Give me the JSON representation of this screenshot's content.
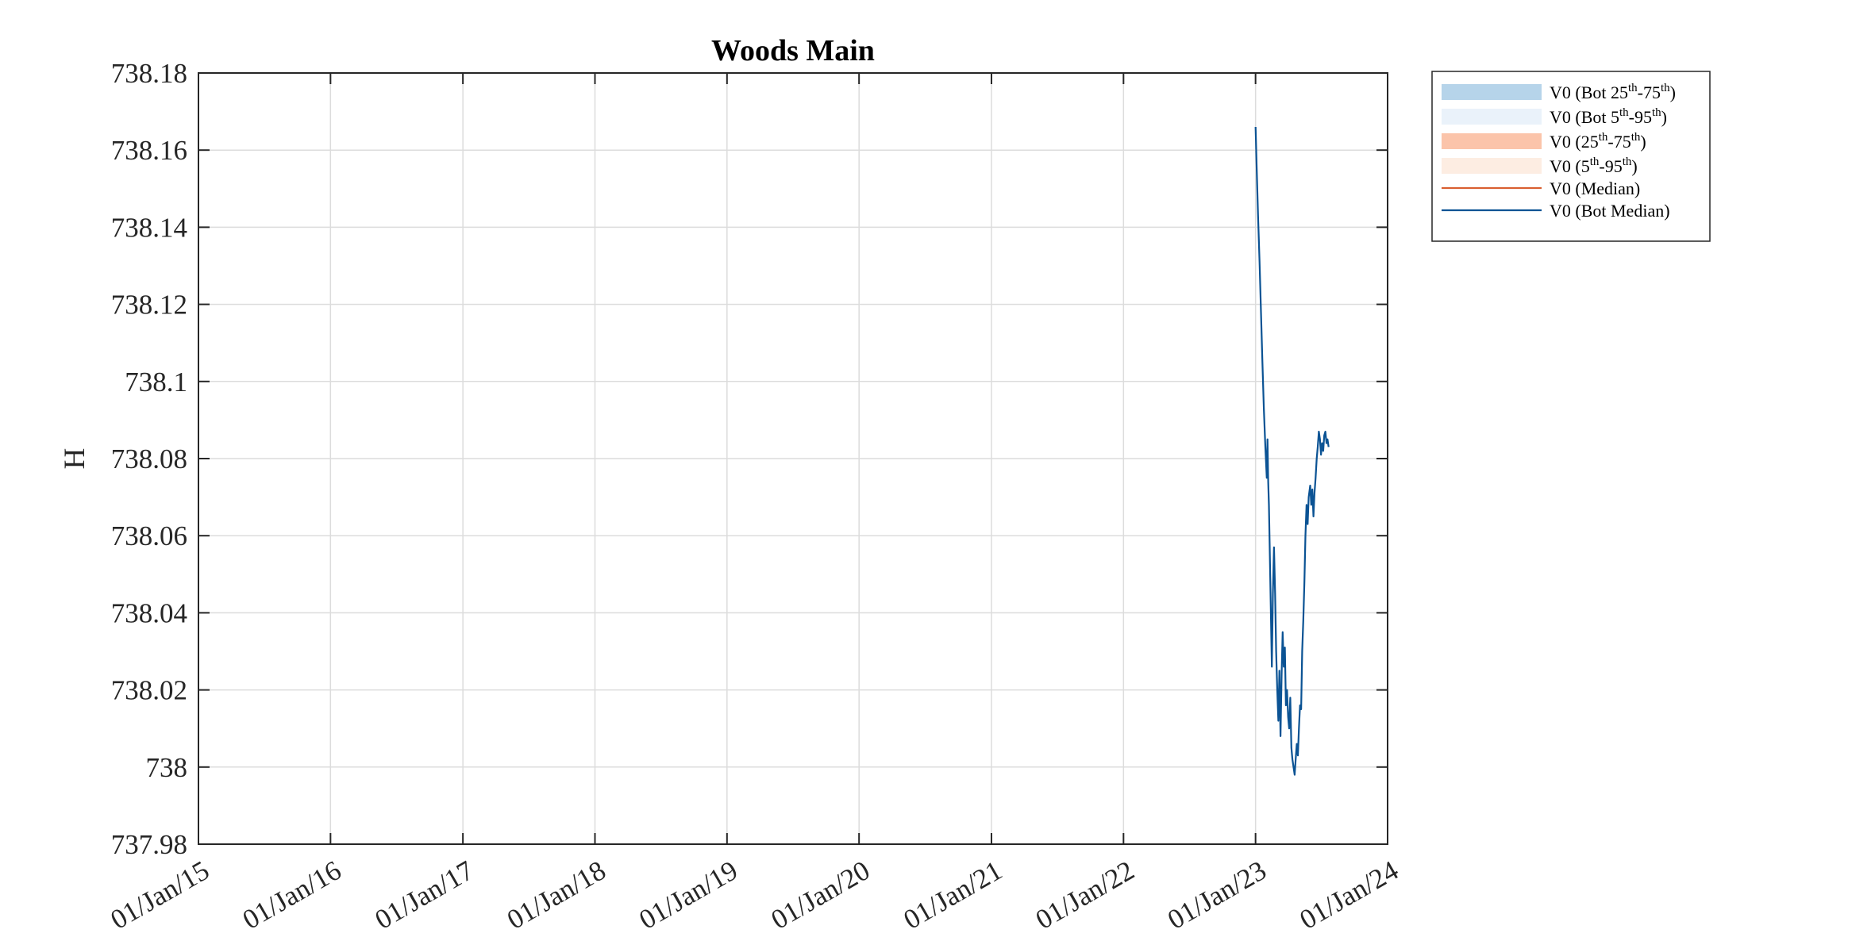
{
  "chart_data": {
    "type": "line",
    "title": "Woods Main",
    "xlabel": "",
    "ylabel": "H",
    "x_axis_type": "date",
    "xlim": [
      "2015-01-01",
      "2024-01-01"
    ],
    "ylim": [
      737.98,
      738.18
    ],
    "x_ticks": [
      "2015-01-01",
      "2016-01-01",
      "2017-01-01",
      "2018-01-01",
      "2019-01-01",
      "2020-01-01",
      "2021-01-01",
      "2022-01-01",
      "2023-01-01",
      "2024-01-01"
    ],
    "x_tick_labels": [
      "01/Jan/15",
      "01/Jan/16",
      "01/Jan/17",
      "01/Jan/18",
      "01/Jan/19",
      "01/Jan/20",
      "01/Jan/21",
      "01/Jan/22",
      "01/Jan/23",
      "01/Jan/24"
    ],
    "y_ticks": [
      737.98,
      738.0,
      738.02,
      738.04,
      738.06,
      738.08,
      738.1,
      738.12,
      738.14,
      738.16,
      738.18
    ],
    "y_tick_labels": [
      "737.98",
      "738",
      "738.02",
      "738.04",
      "738.06",
      "738.08",
      "738.1",
      "738.12",
      "738.14",
      "738.16",
      "738.18"
    ],
    "grid": true,
    "legend_placement": "outside-top-right",
    "legend": [
      {
        "kind": "band",
        "color": "#b6d4ea",
        "parts": [
          {
            "t": "V0 (Bot 25"
          },
          {
            "t": "th",
            "sup": true
          },
          {
            "t": "-75"
          },
          {
            "t": "th",
            "sup": true
          },
          {
            "t": ")"
          }
        ]
      },
      {
        "kind": "band",
        "color": "#eaf2fa",
        "parts": [
          {
            "t": "V0 (Bot 5"
          },
          {
            "t": "th",
            "sup": true
          },
          {
            "t": "-95"
          },
          {
            "t": "th",
            "sup": true
          },
          {
            "t": ")"
          }
        ]
      },
      {
        "kind": "band",
        "color": "#fbc4aa",
        "parts": [
          {
            "t": "V0 (25"
          },
          {
            "t": "th",
            "sup": true
          },
          {
            "t": "-75"
          },
          {
            "t": "th",
            "sup": true
          },
          {
            "t": ")"
          }
        ]
      },
      {
        "kind": "band",
        "color": "#fdede2",
        "parts": [
          {
            "t": "V0 (5"
          },
          {
            "t": "th",
            "sup": true
          },
          {
            "t": "-95"
          },
          {
            "t": "th",
            "sup": true
          },
          {
            "t": ")"
          }
        ]
      },
      {
        "kind": "line",
        "color": "#d95f30",
        "parts": [
          {
            "t": "V0 (Median)"
          }
        ]
      },
      {
        "kind": "line",
        "color": "#0b5394",
        "parts": [
          {
            "t": "V0 (Bot Median)"
          }
        ]
      }
    ],
    "series": [
      {
        "name": "V0 (Bot Median)",
        "color": "#0b5394",
        "x": [
          "2023-01-01",
          "2023-01-04",
          "2023-01-08",
          "2023-01-12",
          "2023-01-16",
          "2023-01-20",
          "2023-01-24",
          "2023-01-28",
          "2023-02-01",
          "2023-02-03",
          "2023-02-05",
          "2023-02-07",
          "2023-02-09",
          "2023-02-12",
          "2023-02-15",
          "2023-02-18",
          "2023-02-21",
          "2023-02-24",
          "2023-02-27",
          "2023-03-02",
          "2023-03-05",
          "2023-03-08",
          "2023-03-11",
          "2023-03-14",
          "2023-03-17",
          "2023-03-20",
          "2023-03-23",
          "2023-03-26",
          "2023-03-29",
          "2023-04-01",
          "2023-04-04",
          "2023-04-07",
          "2023-04-10",
          "2023-04-13",
          "2023-04-16",
          "2023-04-19",
          "2023-04-22",
          "2023-04-25",
          "2023-04-28",
          "2023-05-01",
          "2023-05-04",
          "2023-05-07",
          "2023-05-10",
          "2023-05-13",
          "2023-05-16",
          "2023-05-19",
          "2023-05-22",
          "2023-05-25",
          "2023-05-28",
          "2023-06-01",
          "2023-06-04",
          "2023-06-07",
          "2023-06-10",
          "2023-06-13",
          "2023-06-16",
          "2023-06-19",
          "2023-06-22",
          "2023-06-25",
          "2023-06-28",
          "2023-07-01",
          "2023-07-04",
          "2023-07-07",
          "2023-07-10",
          "2023-07-13",
          "2023-07-16",
          "2023-07-19",
          "2023-07-22"
        ],
        "y": [
          738.166,
          738.156,
          738.143,
          738.131,
          738.118,
          738.105,
          738.093,
          738.083,
          738.075,
          738.085,
          738.074,
          738.068,
          738.058,
          738.042,
          738.026,
          738.045,
          738.057,
          738.045,
          738.03,
          738.02,
          738.012,
          738.025,
          738.008,
          738.024,
          738.035,
          738.026,
          738.031,
          738.016,
          738.02,
          738.013,
          738.01,
          738.018,
          738.005,
          738.002,
          738.0,
          737.998,
          738.002,
          738.006,
          738.003,
          738.01,
          738.016,
          738.015,
          738.03,
          738.038,
          738.048,
          738.06,
          738.068,
          738.063,
          738.07,
          738.073,
          738.068,
          738.072,
          738.065,
          738.071,
          738.075,
          738.08,
          738.083,
          738.087,
          738.085,
          738.081,
          738.084,
          738.082,
          738.086,
          738.087,
          738.084,
          738.085,
          738.083
        ]
      }
    ]
  }
}
